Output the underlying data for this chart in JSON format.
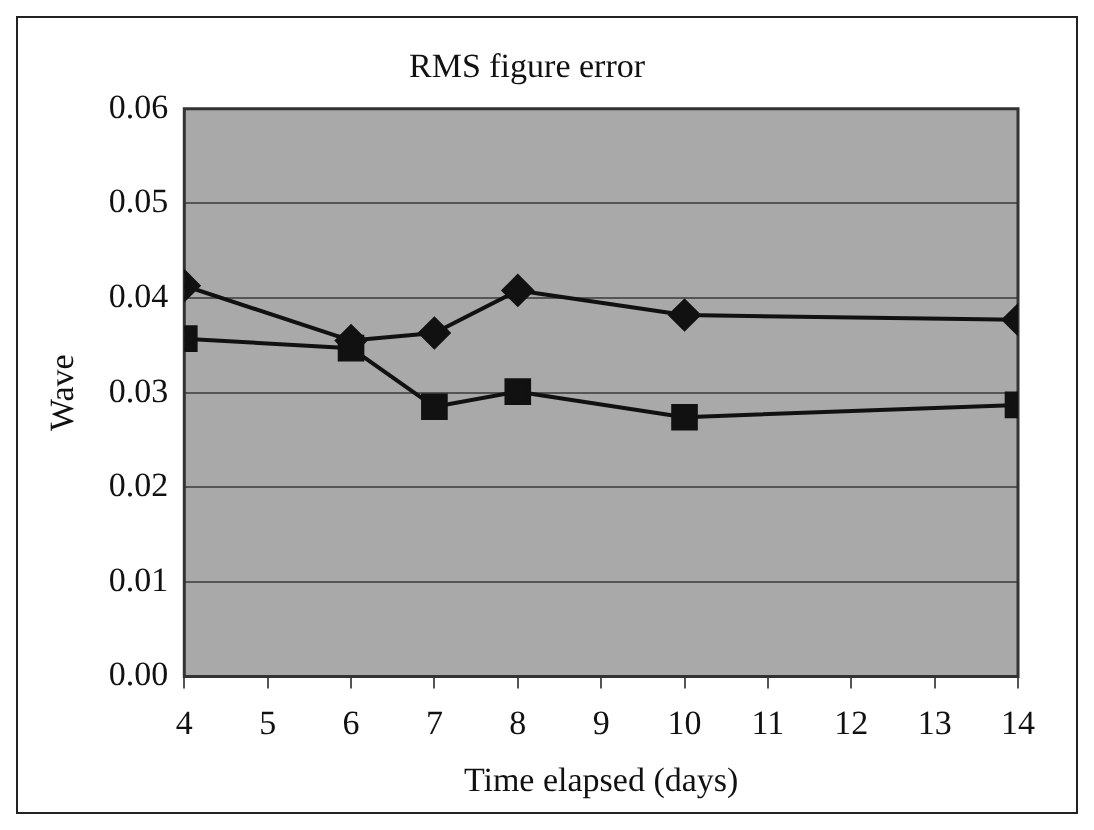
{
  "chart_data": {
    "type": "line",
    "title": "RMS figure error",
    "xlabel": "Time elapsed (days)",
    "ylabel": "Wave",
    "x": [
      4,
      6,
      7,
      8,
      10,
      14
    ],
    "series": [
      {
        "color": "#111111",
        "marker": "diamond",
        "values": [
          0.0413,
          0.0355,
          0.0363,
          0.0408,
          0.0382,
          0.0377
        ]
      },
      {
        "color": "#111111",
        "marker": "square",
        "values": [
          0.0357,
          0.0347,
          0.0285,
          0.0301,
          0.0274,
          0.0287
        ]
      }
    ],
    "xlim": [
      4,
      14
    ],
    "xticks": [
      4,
      5,
      6,
      7,
      8,
      9,
      10,
      11,
      12,
      13,
      14
    ],
    "ylim": [
      0,
      0.06
    ],
    "yticks": [
      {
        "value": 0,
        "label": "0.00"
      },
      {
        "value": 0.01,
        "label": "0.01"
      },
      {
        "value": 0.02,
        "label": "0.02"
      },
      {
        "value": 0.03,
        "label": "0.03"
      },
      {
        "value": 0.04,
        "label": "0.04"
      },
      {
        "value": 0.05,
        "label": "0.05"
      },
      {
        "value": 0.06,
        "label": "0.06"
      }
    ],
    "grid": "y",
    "legend": false,
    "line_style": "solid"
  }
}
